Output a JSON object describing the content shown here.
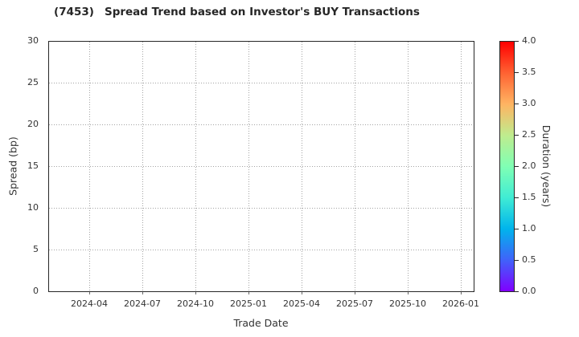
{
  "title": {
    "ticker": "(7453)",
    "text": "Spread Trend based on Investor's BUY Transactions"
  },
  "chart_data": {
    "type": "scatter",
    "title": "(7453)  Spread Trend based on Investor's BUY Transactions",
    "xlabel": "Trade Date",
    "ylabel": "Spread (bp)",
    "x_tick_labels": [
      "2024-04",
      "2024-07",
      "2024-10",
      "2025-01",
      "2025-04",
      "2025-07",
      "2025-10",
      "2026-01"
    ],
    "y_tick_labels_top_to_bottom": [
      "30",
      "25",
      "20",
      "15",
      "10",
      "5",
      "0"
    ],
    "ylim": [
      0,
      30
    ],
    "grid": true,
    "series": [],
    "points": [],
    "colorbar": {
      "label": "Duration (years)",
      "tick_labels_top_to_bottom": [
        "4.0",
        "3.5",
        "3.0",
        "2.5",
        "2.0",
        "1.5",
        "1.0",
        "0.5",
        "0.0"
      ],
      "range": [
        0.0,
        4.0
      ],
      "colormap": "rainbow",
      "gradient_stops_bottom_to_top": [
        "#8000ff",
        "#4062fa",
        "#00b4ec",
        "#40ecd4",
        "#80ffb4",
        "#bfec8e",
        "#ffb462",
        "#ff6232",
        "#ff0000"
      ]
    }
  },
  "colors": {
    "background": "#ffffff",
    "axes_frame": "#262626",
    "grid": "#a3a3a3",
    "tick_label": "#333333",
    "title": "#262626"
  }
}
